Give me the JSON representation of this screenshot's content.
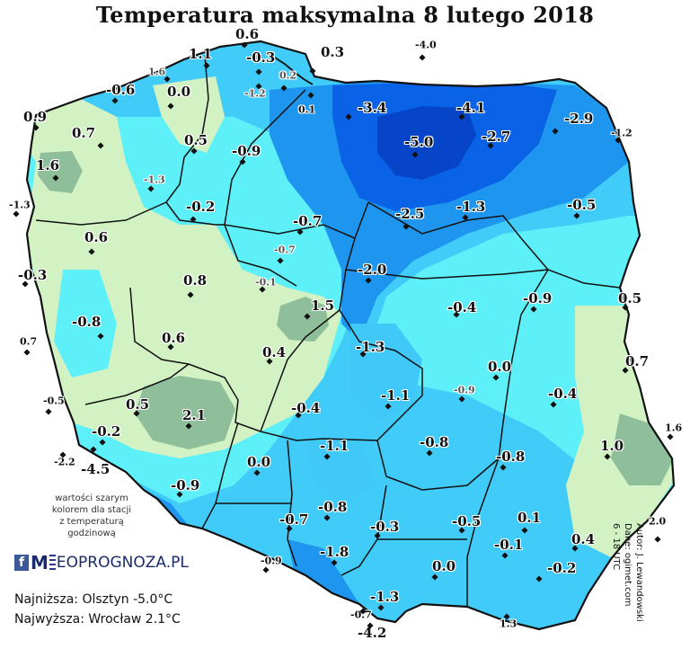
{
  "title": "Temperatura maksymalna 8 lutego 2018",
  "note_lines": [
    "wartości szarym",
    "kolorem dla stacji",
    "z temperaturą",
    "godzinową"
  ],
  "logo": {
    "fb": "f",
    "text_prefix": "M",
    "text_suffix": "EOPROGNOZA.PL"
  },
  "extremes": {
    "lowest": "Najniższa: Olsztyn -5.0°C",
    "highest": "Najwyższa: Wrocław 2.1°C"
  },
  "credits": [
    "Autor: J. Lewandowski",
    "Dane: ogimet.com",
    "6 - 18 UTC"
  ],
  "colors": {
    "light_green": "#d3f2c4",
    "dark_green": "#8fbf9a",
    "cyan": "#5ef0f8",
    "light_blue": "#3fc8f8",
    "blue": "#1e96f0",
    "dark_blue": "#0a62e6",
    "outline": "#111111"
  },
  "stations": [
    {
      "v": "0.6",
      "style": "normal"
    },
    {
      "v": "1.1",
      "style": "normal"
    },
    {
      "v": "-0.3",
      "style": "normal"
    },
    {
      "v": "0.3",
      "style": "normal"
    },
    {
      "v": "-4.0",
      "style": "small"
    },
    {
      "v": "1.6",
      "style": "grey"
    },
    {
      "v": "0.0",
      "style": "normal"
    },
    {
      "v": "0.2",
      "style": "grey"
    },
    {
      "v": "-1.2",
      "style": "grey"
    },
    {
      "v": "-0.6",
      "style": "normal"
    },
    {
      "v": "0.1",
      "style": "small"
    },
    {
      "v": "-3.4",
      "style": "normal"
    },
    {
      "v": "-4.1",
      "style": "normal"
    },
    {
      "v": "0.9",
      "style": "normal"
    },
    {
      "v": "-2.9",
      "style": "normal"
    },
    {
      "v": "0.7",
      "style": "normal"
    },
    {
      "v": "-1.2",
      "style": "small"
    },
    {
      "v": "0.5",
      "style": "normal"
    },
    {
      "v": "-5.0",
      "style": "normal"
    },
    {
      "v": "-2.7",
      "style": "normal"
    },
    {
      "v": "-0.9",
      "style": "normal"
    },
    {
      "v": "1.6",
      "style": "normal"
    },
    {
      "v": "-1.3",
      "style": "grey"
    },
    {
      "v": "-1.3",
      "style": "small"
    },
    {
      "v": "-0.2",
      "style": "normal"
    },
    {
      "v": "-0.7",
      "style": "normal"
    },
    {
      "v": "-2.5",
      "style": "normal"
    },
    {
      "v": "-1.3",
      "style": "normal"
    },
    {
      "v": "-0.5",
      "style": "normal"
    },
    {
      "v": "0.6",
      "style": "normal"
    },
    {
      "v": "-0.7",
      "style": "grey"
    },
    {
      "v": "-0.3",
      "style": "normal"
    },
    {
      "v": "0.8",
      "style": "normal"
    },
    {
      "v": "-0.1",
      "style": "grey"
    },
    {
      "v": "-2.0",
      "style": "normal"
    },
    {
      "v": "0.5",
      "style": "normal"
    },
    {
      "v": "1.5",
      "style": "normal"
    },
    {
      "v": "-0.4",
      "style": "normal"
    },
    {
      "v": "-0.9",
      "style": "normal"
    },
    {
      "v": "-0.8",
      "style": "normal"
    },
    {
      "v": "0.7",
      "style": "small"
    },
    {
      "v": "0.6",
      "style": "normal"
    },
    {
      "v": "0.4",
      "style": "normal"
    },
    {
      "v": "-1.3",
      "style": "normal"
    },
    {
      "v": "0.7",
      "style": "normal"
    },
    {
      "v": "0.0",
      "style": "normal"
    },
    {
      "v": "-0.5",
      "style": "small"
    },
    {
      "v": "0.5",
      "style": "normal"
    },
    {
      "v": "-0.9",
      "style": "grey"
    },
    {
      "v": "-1.1",
      "style": "normal"
    },
    {
      "v": "-0.4",
      "style": "normal"
    },
    {
      "v": "2.1",
      "style": "normal"
    },
    {
      "v": "-0.4",
      "style": "normal"
    },
    {
      "v": "1.6",
      "style": "small"
    },
    {
      "v": "-0.2",
      "style": "normal"
    },
    {
      "v": "-1.1",
      "style": "normal"
    },
    {
      "v": "-0.8",
      "style": "normal"
    },
    {
      "v": "1.0",
      "style": "normal"
    },
    {
      "v": "-2.2",
      "style": "small"
    },
    {
      "v": "-4.5",
      "style": "normal"
    },
    {
      "v": "0.0",
      "style": "normal"
    },
    {
      "v": "-0.8",
      "style": "normal"
    },
    {
      "v": "-0.9",
      "style": "normal"
    },
    {
      "v": "-0.8",
      "style": "normal"
    },
    {
      "v": "-0.7",
      "style": "normal"
    },
    {
      "v": "-0.3",
      "style": "normal"
    },
    {
      "v": "-0.5",
      "style": "normal"
    },
    {
      "v": "0.1",
      "style": "normal"
    },
    {
      "v": "2.0",
      "style": "small"
    },
    {
      "v": "0.4",
      "style": "normal"
    },
    {
      "v": "-1.8",
      "style": "normal"
    },
    {
      "v": "-0.1",
      "style": "normal"
    },
    {
      "v": "-0.9",
      "style": "small"
    },
    {
      "v": "0.0",
      "style": "normal"
    },
    {
      "v": "-0.2",
      "style": "normal"
    },
    {
      "v": "-1.3",
      "style": "normal"
    },
    {
      "v": "-0.7",
      "style": "small"
    },
    {
      "v": "1.3",
      "style": "small"
    },
    {
      "v": "-4.2",
      "style": "normal"
    }
  ]
}
